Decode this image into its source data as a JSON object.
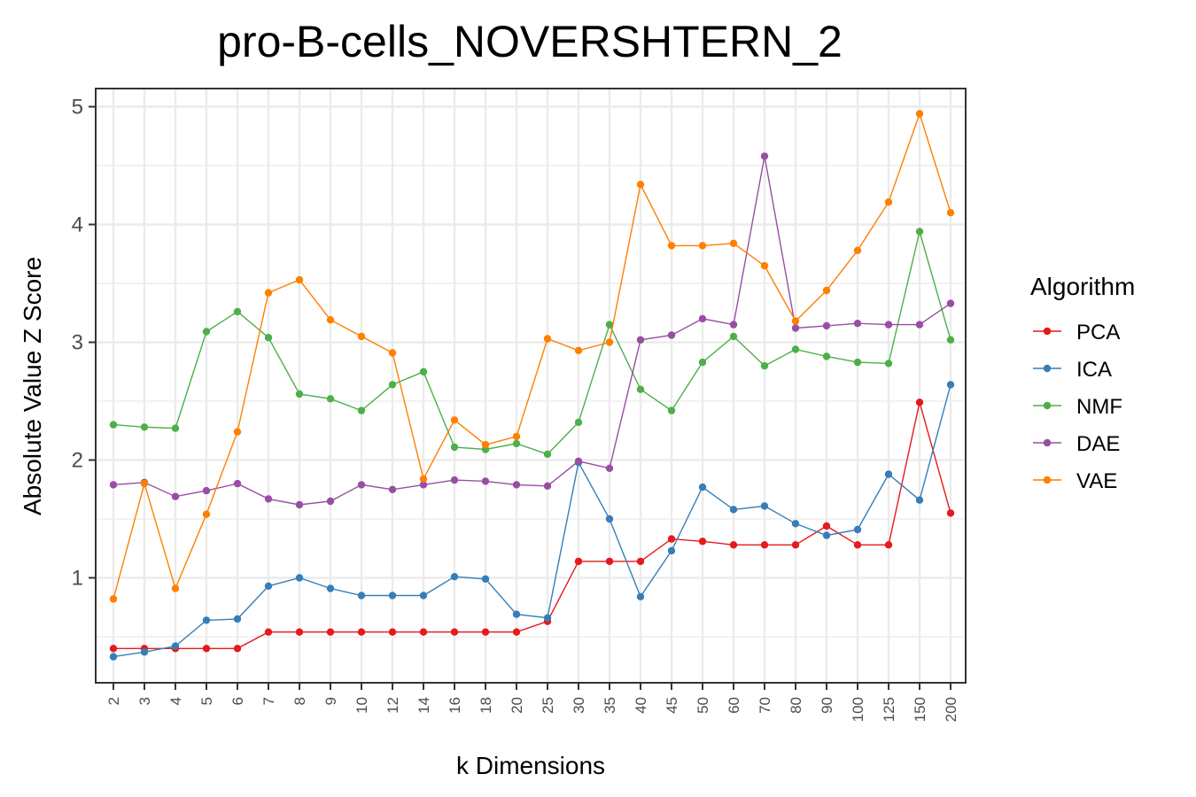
{
  "chart_data": {
    "type": "line",
    "title": "pro-B-cells_NOVERSHTERN_2",
    "xlabel": "k Dimensions",
    "ylabel": "Absolute Value Z Score",
    "categories": [
      "2",
      "3",
      "4",
      "5",
      "6",
      "7",
      "8",
      "9",
      "10",
      "12",
      "14",
      "16",
      "18",
      "20",
      "25",
      "30",
      "35",
      "40",
      "45",
      "50",
      "60",
      "70",
      "80",
      "90",
      "100",
      "125",
      "150",
      "200"
    ],
    "yticks": [
      "1",
      "2",
      "3",
      "4",
      "5"
    ],
    "ylim": [
      0.2,
      5.1
    ],
    "grid": true,
    "legend": {
      "title": "Algorithm",
      "position": "right"
    },
    "series": [
      {
        "name": "PCA",
        "color": "#e41a1c",
        "values": [
          0.4,
          0.4,
          0.4,
          0.4,
          0.4,
          0.54,
          0.54,
          0.54,
          0.54,
          0.54,
          0.54,
          0.54,
          0.54,
          0.54,
          0.63,
          1.14,
          1.14,
          1.14,
          1.33,
          1.31,
          1.28,
          1.28,
          1.28,
          1.44,
          1.28,
          1.28,
          2.49,
          1.55
        ]
      },
      {
        "name": "ICA",
        "color": "#377eb8",
        "values": [
          0.33,
          0.37,
          0.42,
          0.64,
          0.65,
          0.93,
          1.0,
          0.91,
          0.85,
          0.85,
          0.85,
          1.01,
          0.99,
          0.69,
          0.66,
          1.98,
          1.5,
          0.84,
          1.23,
          1.77,
          1.58,
          1.61,
          1.46,
          1.36,
          1.41,
          1.88,
          1.66,
          2.64
        ]
      },
      {
        "name": "NMF",
        "color": "#4daf4a",
        "values": [
          2.3,
          2.28,
          2.27,
          3.09,
          3.26,
          3.04,
          2.56,
          2.52,
          2.42,
          2.64,
          2.75,
          2.11,
          2.09,
          2.14,
          2.05,
          2.32,
          3.15,
          2.6,
          2.42,
          2.83,
          3.05,
          2.8,
          2.94,
          2.88,
          2.83,
          2.82,
          3.94,
          3.02
        ]
      },
      {
        "name": "DAE",
        "color": "#984ea3",
        "values": [
          1.79,
          1.81,
          1.69,
          1.74,
          1.8,
          1.67,
          1.62,
          1.65,
          1.79,
          1.75,
          1.79,
          1.83,
          1.82,
          1.79,
          1.78,
          1.99,
          1.93,
          3.02,
          3.06,
          3.2,
          3.15,
          4.58,
          3.12,
          3.14,
          3.16,
          3.15,
          3.15,
          3.33
        ]
      },
      {
        "name": "VAE",
        "color": "#ff7f00",
        "values": [
          0.82,
          1.8,
          0.91,
          1.54,
          2.24,
          3.42,
          3.53,
          3.19,
          3.05,
          2.91,
          1.84,
          2.34,
          2.13,
          2.2,
          3.03,
          2.93,
          3.0,
          4.34,
          3.82,
          3.82,
          3.84,
          3.65,
          3.18,
          3.44,
          3.78,
          4.19,
          4.94,
          4.1
        ]
      }
    ]
  }
}
